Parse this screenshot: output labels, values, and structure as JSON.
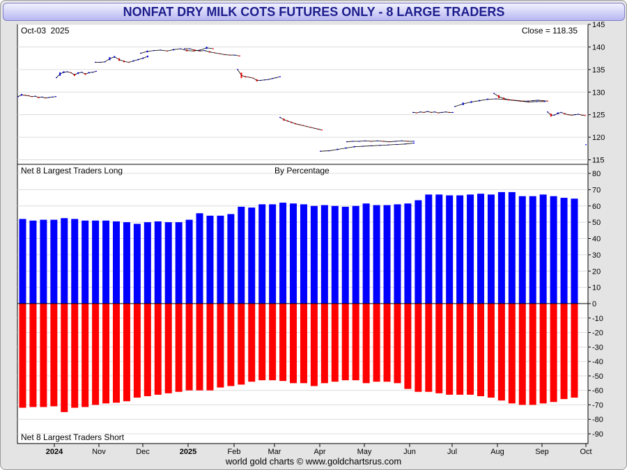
{
  "title": "NONFAT DRY MILK COTS FUTURES ONLY - 8 LARGE TRADERS",
  "footer": "world gold charts © www.goldchartsrus.com",
  "colors": {
    "long": "#0000ff",
    "short": "#ff0000",
    "price_up": "#0000ff",
    "price_down": "#ff0000",
    "title_text": "#1c1c8c"
  },
  "chart_data": [
    {
      "type": "line",
      "date_label": "Oct-03  2025",
      "close_label": "Close = 118.35",
      "y_ticks": [
        115,
        120,
        125,
        130,
        135,
        140,
        145
      ],
      "ylim": [
        114,
        145
      ],
      "x_labels": [
        "2024",
        "Nov",
        "Dec",
        "2025",
        "Feb",
        "Mar",
        "Apr",
        "May",
        "Jun",
        "Jul",
        "Aug",
        "Sep",
        "Oct"
      ],
      "x_labels_bold": [
        "2024",
        "2025"
      ],
      "series": [
        {
          "values": [
            [
              129.0,
              129.4,
              129.3,
              129.2,
              129.0,
              129.1,
              128.8,
              128.9,
              128.7,
              128.8,
              128.9,
              129.0
            ],
            [
              133.2,
              134.0,
              134.4,
              134.5,
              134.3,
              133.8,
              134.2,
              134.4,
              134.0,
              134.3,
              134.4,
              134.6
            ],
            [
              136.6,
              136.6,
              136.7,
              137.4,
              137.8,
              137.2,
              136.8,
              136.6,
              136.9,
              137.2,
              137.5,
              137.9
            ],
            [
              138.6,
              139.0,
              139.2,
              139.3,
              139.1,
              139.4,
              139.6,
              139.2,
              139.1,
              139.3,
              139.8,
              139.6
            ],
            [
              139.6,
              139.6,
              139.3,
              139.1,
              139.2,
              138.9,
              138.7,
              138.5,
              138.3,
              138.2,
              138.2,
              138.0
            ],
            [
              135.0,
              133.7,
              133.4,
              133.3,
              133.1,
              132.6,
              132.6,
              132.7,
              132.8,
              133.0,
              133.2,
              133.4
            ],
            [
              124.4,
              123.9,
              123.6,
              123.3,
              123.0,
              122.8,
              122.6,
              122.4,
              122.2,
              122.0,
              121.8,
              121.6
            ],
            [
              116.9,
              117.0,
              117.3,
              117.6,
              117.9,
              118.0,
              118.1,
              118.2,
              118.3,
              118.4,
              118.5,
              118.7
            ],
            [
              119.0,
              119.1,
              119.1,
              119.2,
              119.1,
              119.2,
              119.1,
              119.0,
              119.1,
              119.2,
              119.1,
              119.1
            ],
            [
              125.5,
              125.4,
              125.6,
              125.5,
              125.7,
              125.5,
              125.6,
              125.4,
              125.5,
              125.6,
              125.5,
              125.5
            ],
            [
              126.8,
              127.4,
              127.8,
              128.1,
              128.4,
              128.5,
              128.4,
              128.2,
              128.0,
              127.8,
              127.9,
              127.9
            ],
            [
              129.7,
              129.0,
              128.6,
              128.3,
              128.2,
              128.1,
              128.0,
              128.0,
              128.1,
              128.2,
              128.1,
              128.0
            ],
            [
              125.6,
              124.9,
              124.9,
              125.3,
              125.5,
              125.2,
              125.0,
              124.9,
              125.0,
              125.1,
              124.9,
              124.8
            ],
            [
              118.35
            ]
          ]
        }
      ]
    },
    {
      "type": "bar",
      "top_label": "Net 8 Largest Traders Long",
      "mid_label": "By Percentage",
      "bottom_label": "Net 8 Largest Traders Short",
      "y_ticks": [
        80,
        70,
        60,
        50,
        40,
        30,
        20,
        10,
        0,
        -10,
        -20,
        -30,
        -40,
        -50,
        -60,
        -70,
        -80,
        -90
      ],
      "ylim_long": [
        0,
        85
      ],
      "ylim_short": [
        -95,
        0
      ],
      "series": [
        {
          "name": "Net 8 Largest Traders Long",
          "values": [
            52,
            51,
            51.5,
            51.5,
            52.5,
            52,
            51,
            51,
            51,
            50.5,
            50,
            49,
            50,
            50.5,
            50,
            50,
            51.5,
            55.5,
            54,
            54,
            55,
            59.5,
            59,
            61,
            61,
            62,
            61.5,
            61,
            60,
            60.5,
            60,
            59.5,
            60,
            61.5,
            60.5,
            60.5,
            61,
            61.5,
            63.5,
            67,
            67,
            66.5,
            66.5,
            67,
            67.5,
            67,
            68.5,
            68.5,
            66,
            66,
            67,
            66,
            65,
            64.5
          ]
        },
        {
          "name": "Net 8 Largest Traders Short",
          "values": [
            -72,
            -71.5,
            -71.5,
            -71,
            -75,
            -72,
            -71.5,
            -70,
            -69,
            -68.5,
            -67.5,
            -65,
            -64,
            -63,
            -62,
            -61,
            -60,
            -60,
            -60,
            -58,
            -57,
            -56,
            -54,
            -53,
            -53,
            -53.5,
            -55,
            -55,
            -57,
            -55,
            -54,
            -53,
            -53,
            -55,
            -54,
            -54,
            -55,
            -59,
            -61,
            -61,
            -62,
            -63,
            -63,
            -63,
            -64,
            -65,
            -67,
            -69,
            -70,
            -70,
            -69,
            -68,
            -66,
            -65
          ]
        }
      ]
    }
  ]
}
